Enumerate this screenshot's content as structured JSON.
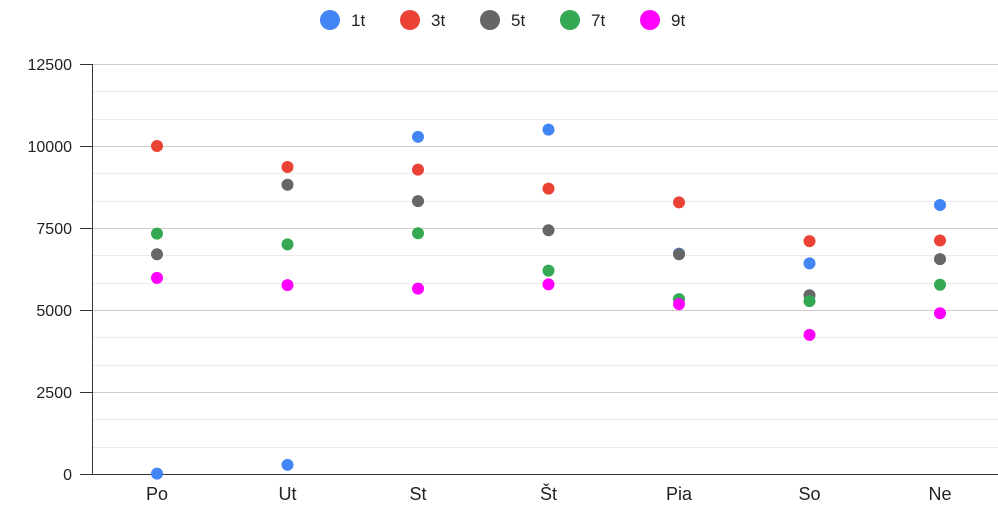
{
  "chart_data": {
    "type": "scatter",
    "categories": [
      "Po",
      "Ut",
      "St",
      "Št",
      "Pia",
      "So",
      "Ne"
    ],
    "series": [
      {
        "name": "1t",
        "color": "#4285F4",
        "values": [
          10,
          280,
          10280,
          10500,
          6720,
          6420,
          8200
        ]
      },
      {
        "name": "3t",
        "color": "#EA4335",
        "values": [
          10000,
          9360,
          9280,
          8700,
          8280,
          7100,
          7120
        ]
      },
      {
        "name": "5t",
        "color": "#666666",
        "values": [
          6700,
          8820,
          8320,
          7430,
          6700,
          5450,
          6550
        ]
      },
      {
        "name": "7t",
        "color": "#34A853",
        "values": [
          7330,
          7000,
          7340,
          6200,
          5330,
          5270,
          5770
        ]
      },
      {
        "name": "9t",
        "color": "#FF00FF",
        "values": [
          5980,
          5760,
          5650,
          5780,
          5180,
          4240,
          4900
        ]
      }
    ],
    "ylim": [
      0,
      12500
    ],
    "yticks": [
      "0",
      "2500",
      "5000",
      "7500",
      "10000",
      "12500"
    ],
    "ytick_values": [
      0,
      2500,
      5000,
      7500,
      10000,
      12500
    ],
    "minor_gridlines_per_major": 2,
    "grid": true,
    "legend_position": "top",
    "xlabel": "",
    "ylabel": ""
  }
}
